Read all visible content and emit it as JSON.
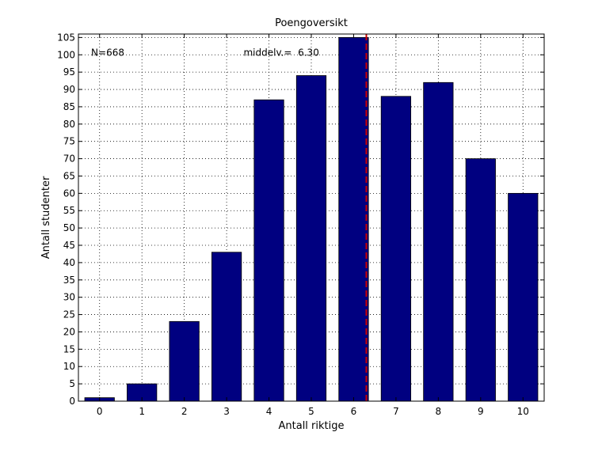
{
  "chart_data": {
    "type": "bar",
    "title": "Poengoversikt",
    "xlabel": "Antall riktige",
    "ylabel": "Antall studenter",
    "categories": [
      "0",
      "1",
      "2",
      "3",
      "4",
      "5",
      "6",
      "7",
      "8",
      "9",
      "10"
    ],
    "x": [
      0,
      1,
      2,
      3,
      4,
      5,
      6,
      7,
      8,
      9,
      10
    ],
    "values": [
      1,
      5,
      23,
      43,
      87,
      94,
      105,
      88,
      92,
      70,
      60
    ],
    "xlim": [
      -0.5,
      10.5
    ],
    "ylim": [
      0,
      106
    ],
    "yticks": [
      0,
      5,
      10,
      15,
      20,
      25,
      30,
      35,
      40,
      45,
      50,
      55,
      60,
      65,
      70,
      75,
      80,
      85,
      90,
      95,
      100,
      105
    ],
    "grid": true,
    "mean_line": {
      "value": 6.3,
      "color": "#cc0000"
    },
    "annotations": [
      {
        "text": "N=668",
        "x": -0.2,
        "y": 100
      },
      {
        "text": "middelv.=  6.30",
        "x": 3.4,
        "y": 100
      }
    ],
    "colors": {
      "bar": "#000080",
      "mean": "#cc0000"
    }
  }
}
